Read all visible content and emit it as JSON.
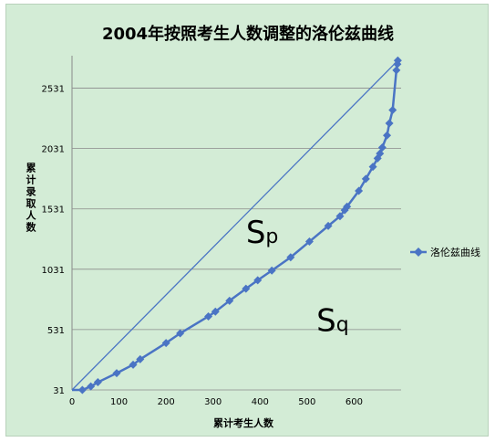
{
  "colors": {
    "background": "#d3ecd6",
    "series": "#4a74c4",
    "diagonal": "#4a74c4",
    "grid": "#8a8a8a",
    "text": "#000000"
  },
  "chart_data": {
    "type": "line",
    "title": "2004年按照考生人数调整的洛伦兹曲线",
    "xlabel": "累计考生人数",
    "ylabel": "累计录取人数",
    "xlim": [
      0,
      700
    ],
    "ylim": [
      31,
      2800
    ],
    "x_ticks": [
      0,
      100,
      200,
      300,
      400,
      500,
      600
    ],
    "y_ticks": [
      31,
      531,
      1031,
      1531,
      2031,
      2531
    ],
    "grid": "horizontal",
    "legend_position": "right",
    "series": [
      {
        "name": "洛伦兹曲线",
        "marker": "diamond",
        "x": [
          22,
          40,
          55,
          95,
          130,
          145,
          200,
          230,
          290,
          305,
          335,
          370,
          395,
          425,
          465,
          505,
          545,
          570,
          580,
          585,
          610,
          625,
          640,
          650,
          655,
          660,
          670,
          675,
          682,
          690,
          692,
          693
        ],
        "y": [
          31,
          60,
          95,
          170,
          240,
          285,
          420,
          500,
          640,
          680,
          770,
          870,
          940,
          1020,
          1130,
          1260,
          1390,
          1470,
          1520,
          1550,
          1680,
          1780,
          1880,
          1950,
          1990,
          2040,
          2140,
          2240,
          2350,
          2680,
          2730,
          2760
        ]
      }
    ],
    "reference_line": {
      "from": [
        0,
        31
      ],
      "to": [
        693,
        2760
      ]
    },
    "annotations": [
      {
        "text": "Sp",
        "x": 370,
        "y": 1250
      },
      {
        "text": "Sq",
        "x": 520,
        "y": 520
      }
    ]
  }
}
